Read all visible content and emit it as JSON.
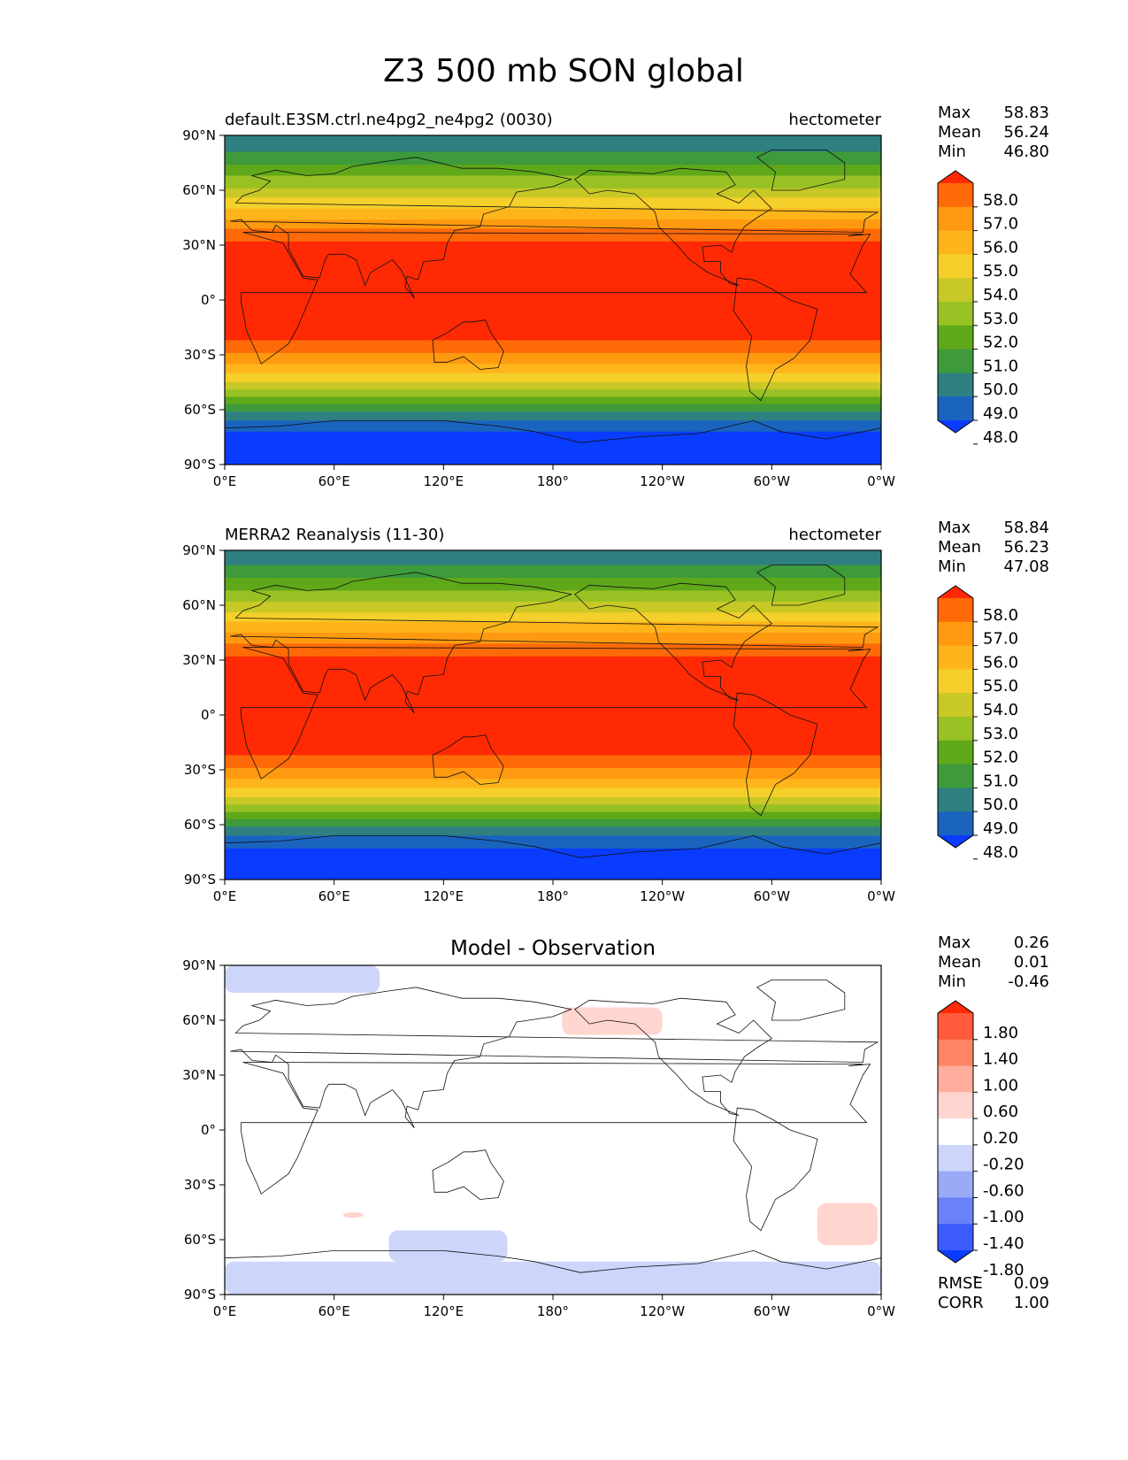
{
  "figure": {
    "title": "Z3 500 mb SON global"
  },
  "chart_data": [
    {
      "type": "heatmap",
      "panel": "model",
      "title_left": "default.E3SM.ctrl.ne4pg2_ne4pg2 (0030)",
      "title_right": "hectometer",
      "x_ticks": [
        "0°E",
        "60°E",
        "120°E",
        "180°",
        "120°W",
        "60°W",
        "0°W"
      ],
      "y_ticks": [
        "90°N",
        "60°N",
        "30°N",
        "0°",
        "30°S",
        "60°S",
        "90°S"
      ],
      "xlim": [
        0,
        360
      ],
      "ylim": [
        -90,
        90
      ],
      "stats": [
        {
          "label": "Max",
          "value": "58.83"
        },
        {
          "label": "Mean",
          "value": "56.24"
        },
        {
          "label": "Min",
          "value": "46.80"
        }
      ],
      "colorbar": {
        "levels": [
          "58.0",
          "57.0",
          "56.0",
          "55.0",
          "54.0",
          "53.0",
          "52.0",
          "51.0",
          "50.0",
          "49.0",
          "48.0"
        ],
        "colors": [
          "#ff2a05",
          "#ff6a08",
          "#ff9a10",
          "#feb51b",
          "#f5cf2a",
          "#c8c826",
          "#98c224",
          "#5fa81a",
          "#3e9a3a",
          "#2f8080",
          "#1a64c0",
          "#0a3cff"
        ]
      },
      "zonal_profile": {
        "lat": [
          90,
          80,
          70,
          60,
          50,
          45,
          40,
          35,
          30,
          20,
          10,
          0,
          -10,
          -20,
          -25,
          -30,
          -35,
          -40,
          -45,
          -50,
          -55,
          -60,
          -65,
          -70,
          -75,
          -80,
          -90
        ],
        "value": [
          49.2,
          50.1,
          51.6,
          53.2,
          55.0,
          55.9,
          56.8,
          57.6,
          58.2,
          58.6,
          58.8,
          58.8,
          58.7,
          58.3,
          57.6,
          56.8,
          56.0,
          55.0,
          54.0,
          52.7,
          51.4,
          50.2,
          49.1,
          48.3,
          47.6,
          47.2,
          46.8
        ]
      }
    },
    {
      "type": "heatmap",
      "panel": "observation",
      "title_left": "MERRA2 Reanalysis (11-30)",
      "title_right": "hectometer",
      "x_ticks": [
        "0°E",
        "60°E",
        "120°E",
        "180°",
        "120°W",
        "60°W",
        "0°W"
      ],
      "y_ticks": [
        "90°N",
        "60°N",
        "30°N",
        "0°",
        "30°S",
        "60°S",
        "90°S"
      ],
      "xlim": [
        0,
        360
      ],
      "ylim": [
        -90,
        90
      ],
      "stats": [
        {
          "label": "Max",
          "value": "58.84"
        },
        {
          "label": "Mean",
          "value": "56.23"
        },
        {
          "label": "Min",
          "value": "47.08"
        }
      ],
      "colorbar": {
        "levels": [
          "58.0",
          "57.0",
          "56.0",
          "55.0",
          "54.0",
          "53.0",
          "52.0",
          "51.0",
          "50.0",
          "49.0",
          "48.0"
        ],
        "colors": [
          "#ff2a05",
          "#ff6a08",
          "#ff9a10",
          "#feb51b",
          "#f5cf2a",
          "#c8c826",
          "#98c224",
          "#5fa81a",
          "#3e9a3a",
          "#2f8080",
          "#1a64c0",
          "#0a3cff"
        ]
      },
      "zonal_profile": {
        "lat": [
          90,
          80,
          70,
          60,
          50,
          45,
          40,
          35,
          30,
          20,
          10,
          0,
          -10,
          -20,
          -25,
          -30,
          -35,
          -40,
          -45,
          -50,
          -55,
          -60,
          -65,
          -70,
          -75,
          -80,
          -90
        ],
        "value": [
          49.3,
          50.2,
          51.7,
          53.3,
          55.1,
          56.0,
          56.8,
          57.6,
          58.2,
          58.6,
          58.8,
          58.8,
          58.7,
          58.3,
          57.6,
          56.8,
          56.0,
          55.0,
          54.0,
          52.8,
          51.5,
          50.3,
          49.2,
          48.4,
          47.8,
          47.4,
          47.1
        ]
      }
    },
    {
      "type": "heatmap",
      "panel": "difference",
      "title_center": "Model - Observation",
      "x_ticks": [
        "0°E",
        "60°E",
        "120°E",
        "180°",
        "120°W",
        "60°W",
        "0°W"
      ],
      "y_ticks": [
        "90°N",
        "60°N",
        "30°N",
        "0°",
        "30°S",
        "60°S",
        "90°S"
      ],
      "xlim": [
        0,
        360
      ],
      "ylim": [
        -90,
        90
      ],
      "stats": [
        {
          "label": "Max",
          "value": "0.26"
        },
        {
          "label": "Mean",
          "value": "0.01"
        },
        {
          "label": "Min",
          "value": "-0.46"
        }
      ],
      "metrics": [
        {
          "label": "RMSE",
          "value": "0.09"
        },
        {
          "label": "CORR",
          "value": "1.00"
        }
      ],
      "colorbar": {
        "levels": [
          "1.80",
          "1.40",
          "1.00",
          "0.60",
          "0.20",
          "-0.20",
          "-0.60",
          "-1.00",
          "-1.40",
          "-1.80"
        ],
        "colors": [
          "#ff2a05",
          "#ff5a3c",
          "#ff8566",
          "#ffad9c",
          "#ffd5cf",
          "#ffffff",
          "#cdd5fb",
          "#9aaaf7",
          "#6a82f7",
          "#3b5cfb",
          "#0a3cff"
        ]
      },
      "regions": [
        {
          "sign": "negative",
          "lon": [
            0,
            85
          ],
          "lat": [
            75,
            90
          ]
        },
        {
          "sign": "positive",
          "lon": [
            185,
            240
          ],
          "lat": [
            52,
            67
          ]
        },
        {
          "sign": "positive",
          "lon": [
            65,
            76
          ],
          "lat": [
            -48,
            -45
          ]
        },
        {
          "sign": "positive",
          "lon": [
            325,
            358
          ],
          "lat": [
            -63,
            -40
          ]
        },
        {
          "sign": "negative",
          "lon": [
            0,
            360
          ],
          "lat": [
            -90,
            -72
          ]
        },
        {
          "sign": "negative",
          "lon": [
            90,
            155
          ],
          "lat": [
            -72,
            -55
          ]
        }
      ]
    }
  ]
}
